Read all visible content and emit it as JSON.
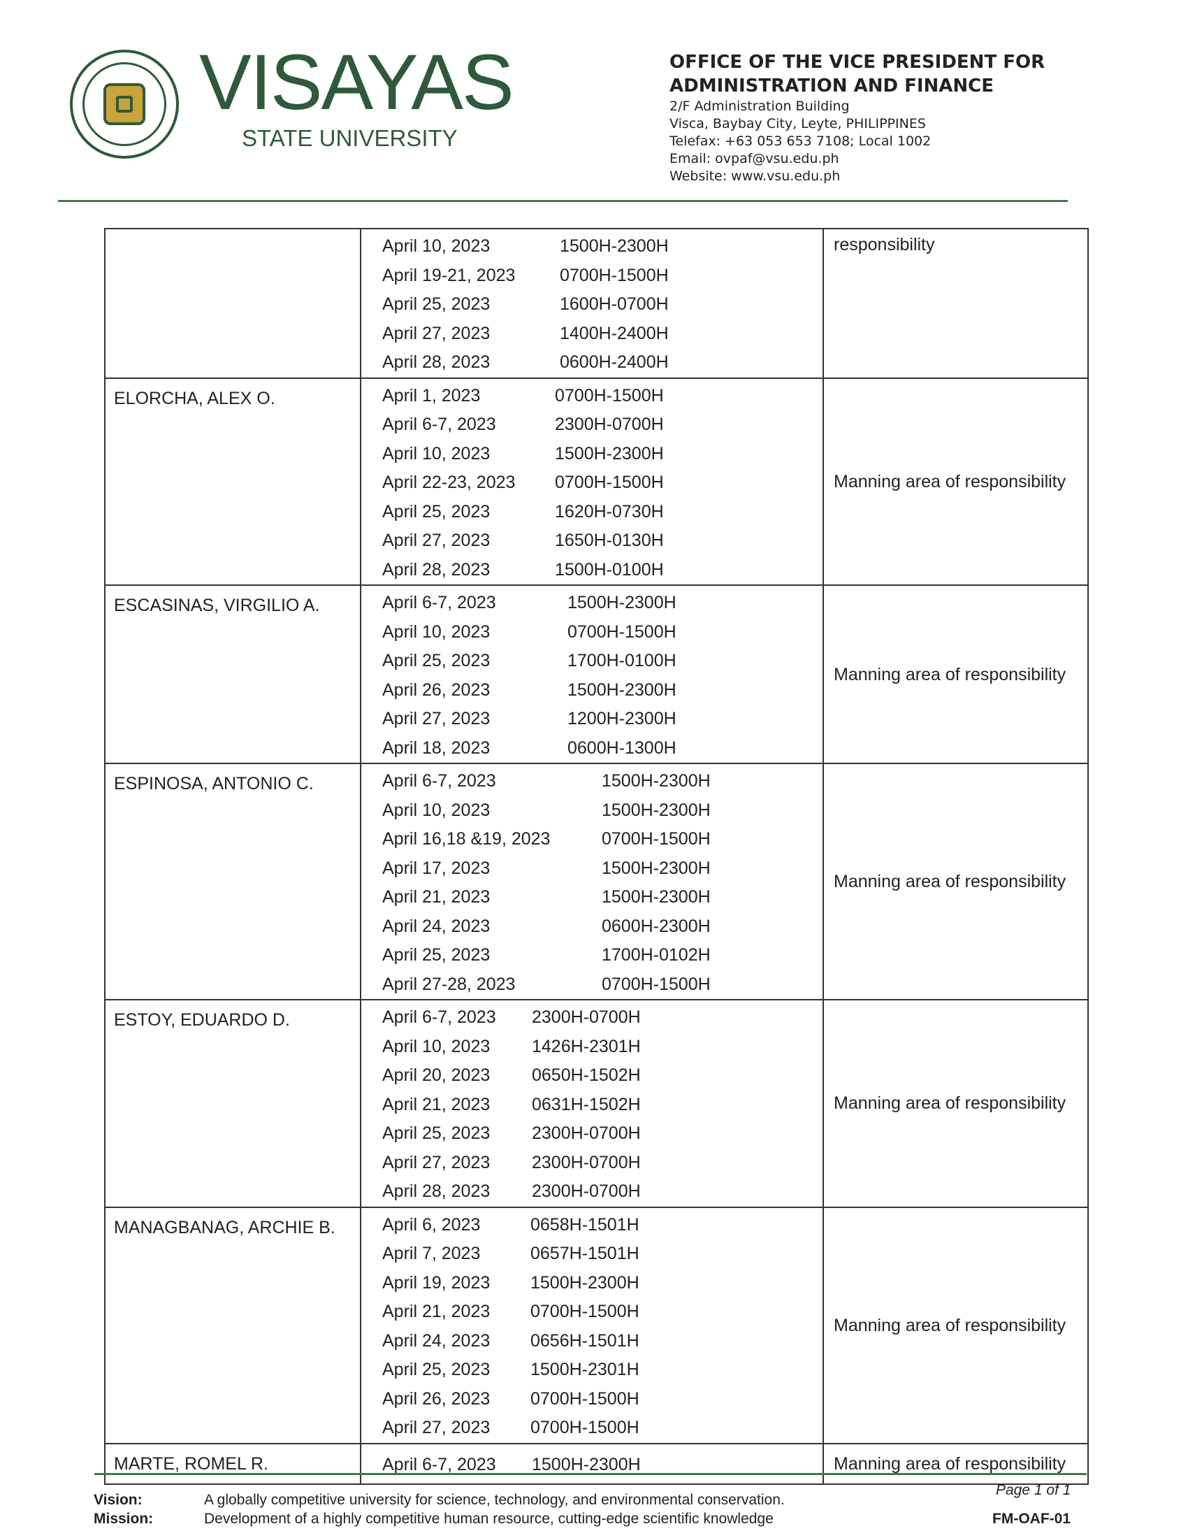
{
  "header": {
    "logo_text": "VISAYAS STATE UNIVERSITY",
    "brand": "VISAYAS",
    "brand_sub": "STATE UNIVERSITY",
    "office_title_1": "OFFICE OF THE VICE PRESIDENT FOR",
    "office_title_2": "ADMINISTRATION AND FINANCE",
    "address_1": "2/F Administration Building",
    "address_2": "Visca, Baybay City, Leyte, PHILIPPINES",
    "telefax": "Telefax: +63 053 653 7108; Local 1002",
    "email": "Email: ovpaf@vsu.edu.ph",
    "website": "Website: www.vsu.edu.ph"
  },
  "table": {
    "rows": [
      {
        "name": "",
        "remark": "responsibility",
        "schedule": [
          [
            "April 10, 2023",
            "1500H-2300H"
          ],
          [
            "April 19-21, 2023",
            "0700H-1500H"
          ],
          [
            "April 25, 2023",
            "1600H-0700H"
          ],
          [
            "April 27, 2023",
            "1400H-2400H"
          ],
          [
            "April 28, 2023",
            "0600H-2400H"
          ]
        ]
      },
      {
        "name": "ELORCHA, ALEX O.",
        "remark": "Manning area of responsibility",
        "schedule": [
          [
            "April 1, 2023",
            "0700H-1500H"
          ],
          [
            "April 6-7, 2023",
            "2300H-0700H"
          ],
          [
            "April 10, 2023",
            "1500H-2300H"
          ],
          [
            "April 22-23, 2023",
            "0700H-1500H"
          ],
          [
            "April 25, 2023",
            "1620H-0730H"
          ],
          [
            "April 27, 2023",
            "1650H-0130H"
          ],
          [
            "April 28, 2023",
            "1500H-0100H"
          ]
        ]
      },
      {
        "name": "ESCASINAS, VIRGILIO A.",
        "remark": "Manning area of responsibility",
        "schedule": [
          [
            "April 6-7, 2023",
            "1500H-2300H"
          ],
          [
            "April 10, 2023",
            "0700H-1500H"
          ],
          [
            "April 25, 2023",
            "1700H-0100H"
          ],
          [
            "April 26, 2023",
            "1500H-2300H"
          ],
          [
            "April 27, 2023",
            "1200H-2300H"
          ],
          [
            "April 18, 2023",
            "0600H-1300H"
          ]
        ]
      },
      {
        "name": "ESPINOSA, ANTONIO C.",
        "remark": "Manning area of responsibility",
        "schedule": [
          [
            "April 6-7, 2023",
            "1500H-2300H"
          ],
          [
            "April 10, 2023",
            "1500H-2300H"
          ],
          [
            "April 16,18 &19, 2023",
            "0700H-1500H"
          ],
          [
            "April 17, 2023",
            "1500H-2300H"
          ],
          [
            "April 21, 2023",
            "1500H-2300H"
          ],
          [
            "April 24, 2023",
            "0600H-2300H"
          ],
          [
            "April 25, 2023",
            "1700H-0102H"
          ],
          [
            "April 27-28, 2023",
            "0700H-1500H"
          ]
        ]
      },
      {
        "name": "ESTOY, EDUARDO D.",
        "remark": "Manning area of responsibility",
        "schedule": [
          [
            "April 6-7, 2023",
            "2300H-0700H"
          ],
          [
            "April 10, 2023",
            "1426H-2301H"
          ],
          [
            "April 20, 2023",
            "0650H-1502H"
          ],
          [
            "April 21, 2023",
            "0631H-1502H"
          ],
          [
            "April 25, 2023",
            "2300H-0700H"
          ],
          [
            "April 27, 2023",
            "2300H-0700H"
          ],
          [
            "April 28, 2023",
            "2300H-0700H"
          ]
        ]
      },
      {
        "name": "MANAGBANAG, ARCHIE B.",
        "remark": "Manning area of responsibility",
        "schedule": [
          [
            "April 6, 2023",
            "0658H-1501H"
          ],
          [
            "April 7, 2023",
            "0657H-1501H"
          ],
          [
            "April 19, 2023",
            "1500H-2300H"
          ],
          [
            "April 21, 2023",
            "0700H-1500H"
          ],
          [
            "April 24, 2023",
            "0656H-1501H"
          ],
          [
            "April 25, 2023",
            "1500H-2301H"
          ],
          [
            "April 26, 2023",
            "0700H-1500H"
          ],
          [
            "April 27, 2023",
            "0700H-1500H"
          ]
        ]
      },
      {
        "name": "MARTE, ROMEL R.",
        "remark": "Manning area of responsibility",
        "schedule": [
          [
            "April 6-7, 2023",
            "1500H-2300H"
          ]
        ]
      }
    ]
  },
  "footer": {
    "vision_label": "Vision:",
    "vision_text": "A globally competitive university for science, technology, and environmental conservation.",
    "mission_label": "Mission:",
    "mission_text": "Development of a highly competitive human resource, cutting-edge scientific knowledge",
    "page": "Page 1 of 1",
    "form_code": "FM-OAF-01"
  },
  "colors": {
    "brand_green": "#2f5a3a",
    "rule_green": "#3f7a4e",
    "seal_gold": "#c9a43a"
  }
}
